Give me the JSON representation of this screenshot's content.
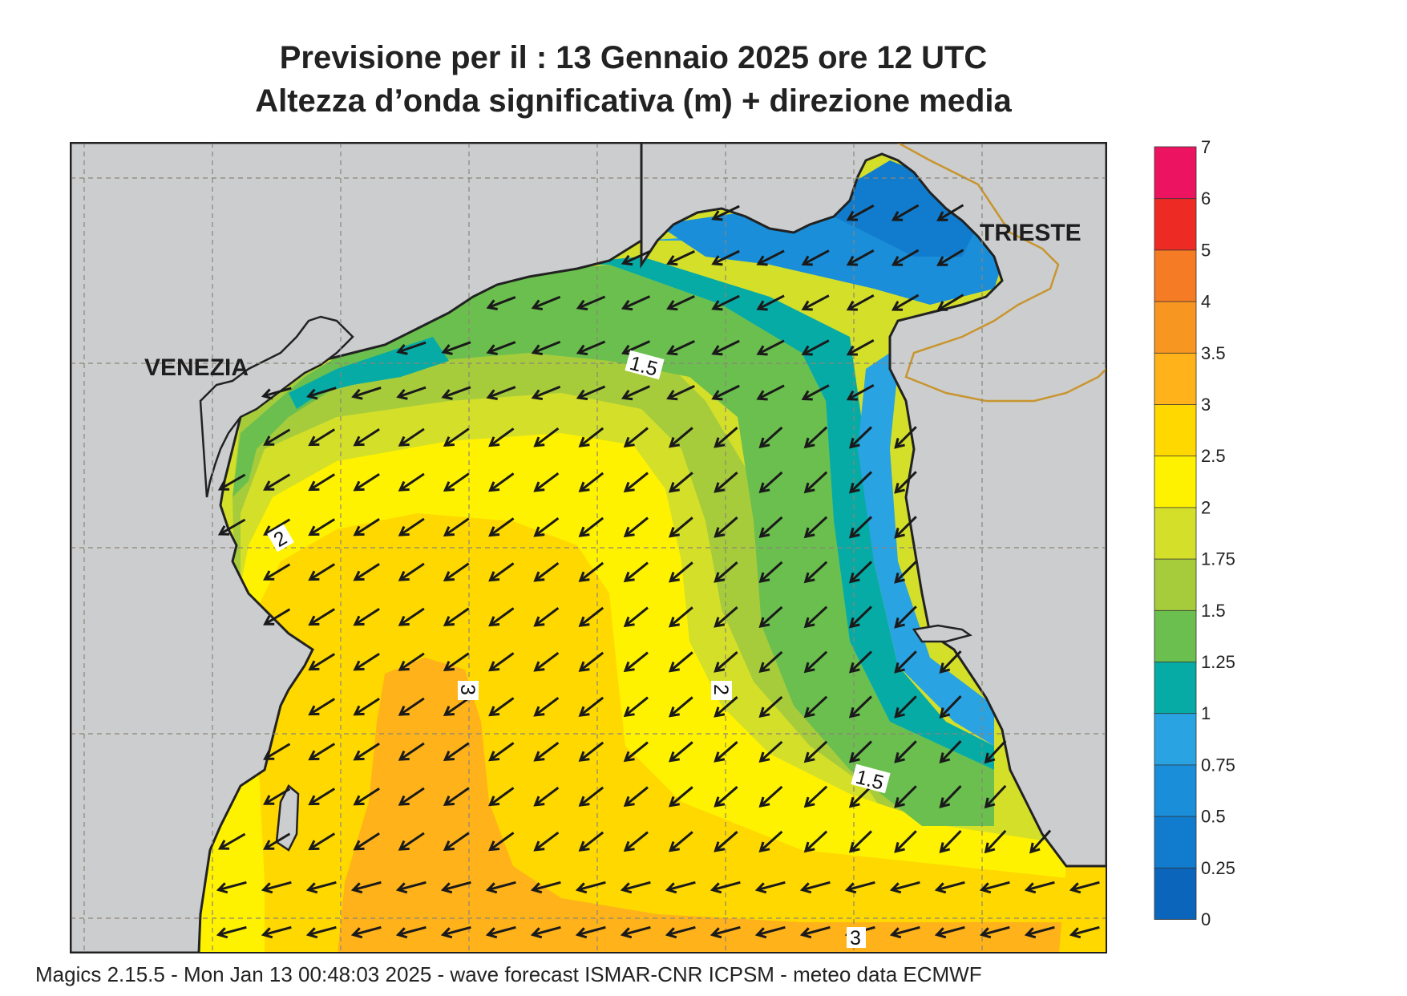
{
  "title_line1": "Previsione per il  :  13  Gennaio  2025   ore 12 UTC",
  "title_line2": "Altezza d’onda significativa (m) + direzione media",
  "footer": "Magics 2.15.5 - Mon Jan 13 00:48:03 2025 - wave forecast  ISMAR-CNR  ICPSM - meteo data   ECMWF",
  "cities": {
    "venezia": "VENEZIA",
    "trieste": "TRIESTE"
  },
  "contour_labels": {
    "c15a": "1.5",
    "c15b": "1.5",
    "c2": "2",
    "c3a": "3",
    "c3b": "3",
    "c2b": "2"
  },
  "legend": {
    "ticks": [
      "0",
      "0.25",
      "0.5",
      "0.75",
      "1",
      "1.25",
      "1.5",
      "1.75",
      "2",
      "2.5",
      "3",
      "3.5",
      "4",
      "5",
      "6",
      "7"
    ],
    "colors": [
      "#0b66bb",
      "#117ccd",
      "#1a8ed8",
      "#2aa3e2",
      "#07aba6",
      "#6bbf4e",
      "#a7cc3b",
      "#d4df2a",
      "#fff200",
      "#ffd800",
      "#ffb21a",
      "#f79722",
      "#f57b25",
      "#ee2a24",
      "#ec1460"
    ]
  },
  "colors": {
    "land": "#cccdcf",
    "coast": "#222222",
    "border": "#c8952e",
    "grid": "#8a8577",
    "arrow": "#1a1a1a"
  }
}
